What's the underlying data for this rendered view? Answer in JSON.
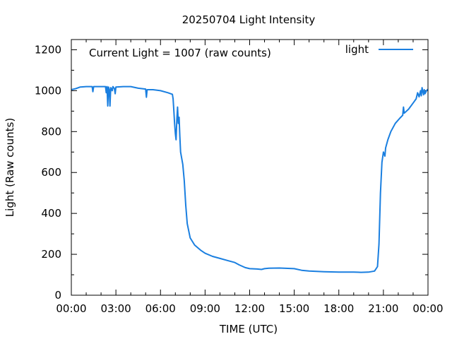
{
  "chart_data": {
    "type": "line",
    "title": "20250704 Light Intensity",
    "xlabel": "TIME (UTC)",
    "ylabel": "Light (Raw counts)",
    "annotation": "Current Light = 1007 (raw counts)",
    "xlim": [
      0,
      24
    ],
    "ylim": [
      0,
      1250
    ],
    "x_ticks": [
      {
        "value": 0,
        "label": "00:00"
      },
      {
        "value": 3,
        "label": "03:00"
      },
      {
        "value": 6,
        "label": "06:00"
      },
      {
        "value": 9,
        "label": "09:00"
      },
      {
        "value": 12,
        "label": "12:00"
      },
      {
        "value": 15,
        "label": "15:00"
      },
      {
        "value": 18,
        "label": "18:00"
      },
      {
        "value": 21,
        "label": "21:00"
      },
      {
        "value": 24,
        "label": "00:00"
      }
    ],
    "y_ticks": [
      {
        "value": 0,
        "label": "0"
      },
      {
        "value": 200,
        "label": "200"
      },
      {
        "value": 400,
        "label": "400"
      },
      {
        "value": 600,
        "label": "600"
      },
      {
        "value": 800,
        "label": "800"
      },
      {
        "value": 1000,
        "label": "1000"
      },
      {
        "value": 1200,
        "label": "1200"
      }
    ],
    "grid": false,
    "legend_position": "top-right",
    "series": [
      {
        "name": "light",
        "color": "#1a7fe0",
        "points": [
          [
            0.0,
            1005
          ],
          [
            0.3,
            1010
          ],
          [
            0.6,
            1018
          ],
          [
            1.0,
            1020
          ],
          [
            1.4,
            1020
          ],
          [
            1.45,
            995
          ],
          [
            1.5,
            1020
          ],
          [
            2.0,
            1020
          ],
          [
            2.3,
            1020
          ],
          [
            2.35,
            990
          ],
          [
            2.4,
            1020
          ],
          [
            2.45,
            925
          ],
          [
            2.5,
            1018
          ],
          [
            2.55,
            1005
          ],
          [
            2.6,
            925
          ],
          [
            2.65,
            1015
          ],
          [
            2.75,
            1000
          ],
          [
            2.8,
            1020
          ],
          [
            2.9,
            1010
          ],
          [
            2.95,
            985
          ],
          [
            3.0,
            1018
          ],
          [
            3.5,
            1020
          ],
          [
            4.0,
            1020
          ],
          [
            4.5,
            1012
          ],
          [
            5.0,
            1008
          ],
          [
            5.05,
            968
          ],
          [
            5.1,
            1005
          ],
          [
            5.5,
            1005
          ],
          [
            6.0,
            1000
          ],
          [
            6.5,
            990
          ],
          [
            6.8,
            982
          ],
          [
            6.85,
            960
          ],
          [
            6.9,
            900
          ],
          [
            6.95,
            840
          ],
          [
            7.0,
            790
          ],
          [
            7.05,
            760
          ],
          [
            7.1,
            860
          ],
          [
            7.15,
            920
          ],
          [
            7.2,
            840
          ],
          [
            7.25,
            870
          ],
          [
            7.3,
            780
          ],
          [
            7.35,
            700
          ],
          [
            7.5,
            640
          ],
          [
            7.6,
            560
          ],
          [
            7.7,
            440
          ],
          [
            7.8,
            350
          ],
          [
            8.0,
            280
          ],
          [
            8.3,
            245
          ],
          [
            8.7,
            220
          ],
          [
            9.0,
            205
          ],
          [
            9.5,
            190
          ],
          [
            10.0,
            180
          ],
          [
            10.5,
            170
          ],
          [
            11.0,
            160
          ],
          [
            11.3,
            148
          ],
          [
            11.7,
            135
          ],
          [
            12.0,
            130
          ],
          [
            12.5,
            128
          ],
          [
            12.8,
            126
          ],
          [
            13.0,
            130
          ],
          [
            13.3,
            132
          ],
          [
            14.0,
            133
          ],
          [
            15.0,
            130
          ],
          [
            15.5,
            122
          ],
          [
            16.0,
            118
          ],
          [
            17.0,
            115
          ],
          [
            18.0,
            113
          ],
          [
            19.0,
            113
          ],
          [
            19.5,
            112
          ],
          [
            20.0,
            113
          ],
          [
            20.4,
            118
          ],
          [
            20.6,
            140
          ],
          [
            20.7,
            250
          ],
          [
            20.8,
            500
          ],
          [
            20.9,
            650
          ],
          [
            21.0,
            700
          ],
          [
            21.1,
            680
          ],
          [
            21.15,
            720
          ],
          [
            21.3,
            760
          ],
          [
            21.5,
            800
          ],
          [
            21.8,
            840
          ],
          [
            22.1,
            865
          ],
          [
            22.3,
            880
          ],
          [
            22.35,
            920
          ],
          [
            22.4,
            890
          ],
          [
            22.7,
            910
          ],
          [
            23.0,
            940
          ],
          [
            23.2,
            960
          ],
          [
            23.3,
            990
          ],
          [
            23.4,
            970
          ],
          [
            23.5,
            1000
          ],
          [
            23.55,
            975
          ],
          [
            23.6,
            1015
          ],
          [
            23.7,
            980
          ],
          [
            23.75,
            1005
          ],
          [
            23.8,
            985
          ],
          [
            23.9,
            1000
          ],
          [
            24.0,
            1007
          ]
        ]
      }
    ]
  }
}
